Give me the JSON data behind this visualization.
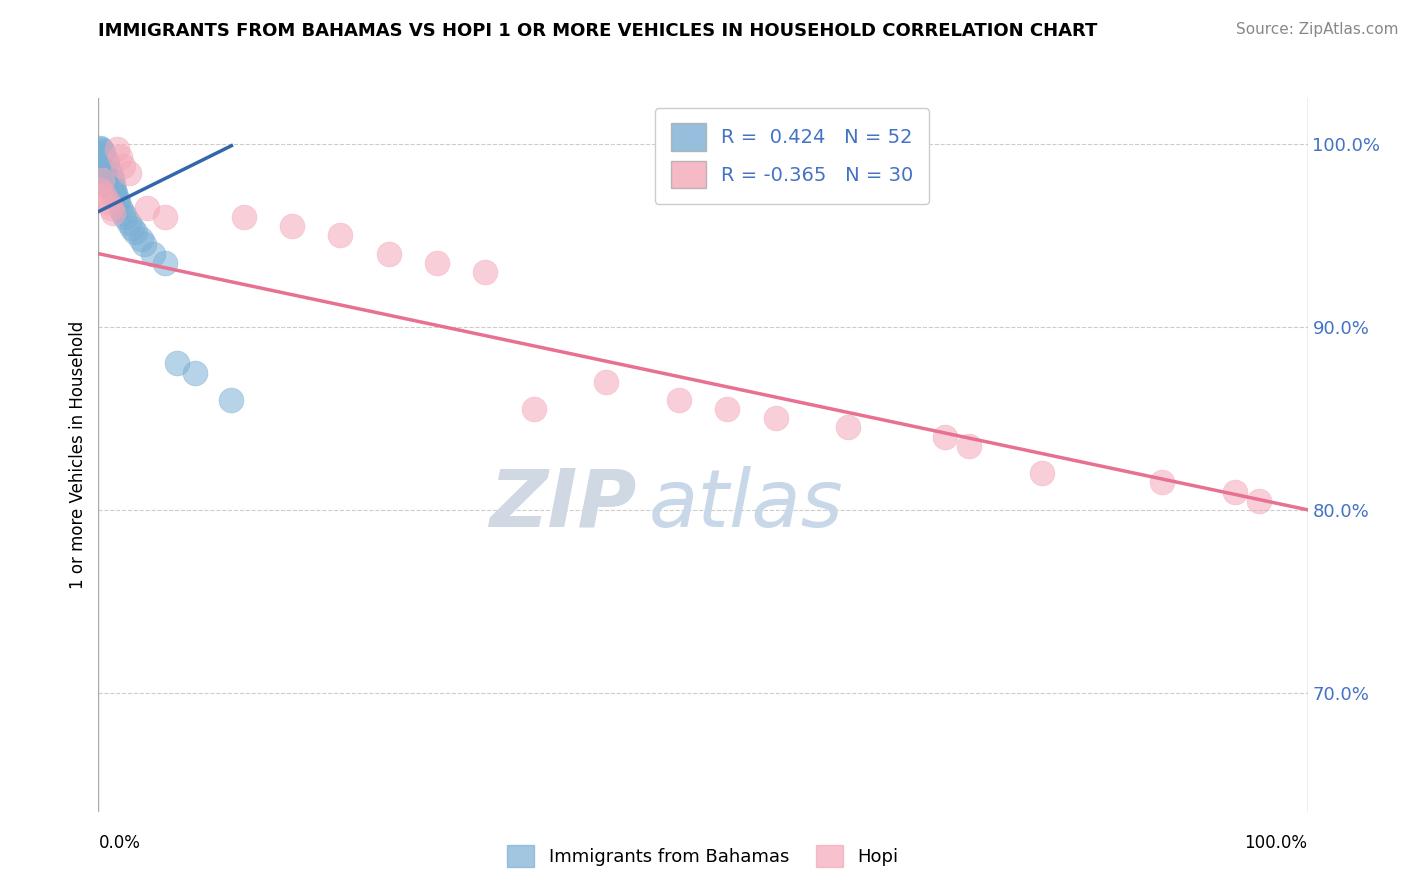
{
  "title": "IMMIGRANTS FROM BAHAMAS VS HOPI 1 OR MORE VEHICLES IN HOUSEHOLD CORRELATION CHART",
  "source_text": "Source: ZipAtlas.com",
  "ylabel": "1 or more Vehicles in Household",
  "y_tick_labels": [
    "70.0%",
    "80.0%",
    "90.0%",
    "100.0%"
  ],
  "y_tick_values": [
    0.7,
    0.8,
    0.9,
    1.0
  ],
  "x_min": 0.0,
  "x_max": 1.0,
  "y_min": 0.635,
  "y_max": 1.025,
  "blue_R": 0.424,
  "blue_N": 52,
  "pink_R": -0.365,
  "pink_N": 30,
  "blue_color": "#7BAFD4",
  "pink_color": "#F4A8B8",
  "blue_line_color": "#3366AA",
  "pink_line_color": "#E87090",
  "watermark_color": "#C8D8E8",
  "background_color": "#FFFFFF",
  "legend_label_blue": "Immigrants from Bahamas",
  "legend_label_pink": "Hopi",
  "blue_scatter_x": [
    0.001,
    0.001,
    0.002,
    0.002,
    0.002,
    0.003,
    0.003,
    0.003,
    0.003,
    0.004,
    0.004,
    0.004,
    0.004,
    0.004,
    0.005,
    0.005,
    0.005,
    0.005,
    0.006,
    0.006,
    0.006,
    0.007,
    0.007,
    0.007,
    0.008,
    0.008,
    0.008,
    0.009,
    0.009,
    0.01,
    0.01,
    0.011,
    0.011,
    0.012,
    0.012,
    0.013,
    0.014,
    0.015,
    0.016,
    0.018,
    0.02,
    0.022,
    0.025,
    0.028,
    0.03,
    0.035,
    0.038,
    0.045,
    0.055,
    0.065,
    0.08,
    0.11
  ],
  "blue_scatter_y": [
    0.998,
    0.994,
    0.997,
    0.993,
    0.989,
    0.996,
    0.992,
    0.988,
    0.984,
    0.995,
    0.991,
    0.987,
    0.983,
    0.978,
    0.993,
    0.989,
    0.985,
    0.98,
    0.991,
    0.987,
    0.982,
    0.989,
    0.985,
    0.98,
    0.987,
    0.983,
    0.978,
    0.985,
    0.981,
    0.983,
    0.978,
    0.981,
    0.976,
    0.978,
    0.973,
    0.975,
    0.973,
    0.97,
    0.968,
    0.965,
    0.962,
    0.96,
    0.957,
    0.954,
    0.952,
    0.948,
    0.945,
    0.94,
    0.935,
    0.88,
    0.875,
    0.86
  ],
  "pink_scatter_x": [
    0.001,
    0.003,
    0.005,
    0.008,
    0.01,
    0.012,
    0.015,
    0.018,
    0.02,
    0.025,
    0.04,
    0.055,
    0.12,
    0.16,
    0.2,
    0.24,
    0.28,
    0.32,
    0.36,
    0.42,
    0.48,
    0.52,
    0.56,
    0.62,
    0.7,
    0.72,
    0.78,
    0.88,
    0.94,
    0.96
  ],
  "pink_scatter_y": [
    0.975,
    0.98,
    0.972,
    0.968,
    0.965,
    0.962,
    0.997,
    0.993,
    0.988,
    0.984,
    0.965,
    0.96,
    0.96,
    0.955,
    0.95,
    0.94,
    0.935,
    0.93,
    0.855,
    0.87,
    0.86,
    0.855,
    0.85,
    0.845,
    0.84,
    0.835,
    0.82,
    0.815,
    0.81,
    0.805
  ],
  "blue_line_x": [
    0.0,
    0.11
  ],
  "blue_line_y": [
    0.963,
    0.999
  ],
  "pink_line_x": [
    0.0,
    1.0
  ],
  "pink_line_y": [
    0.94,
    0.8
  ]
}
